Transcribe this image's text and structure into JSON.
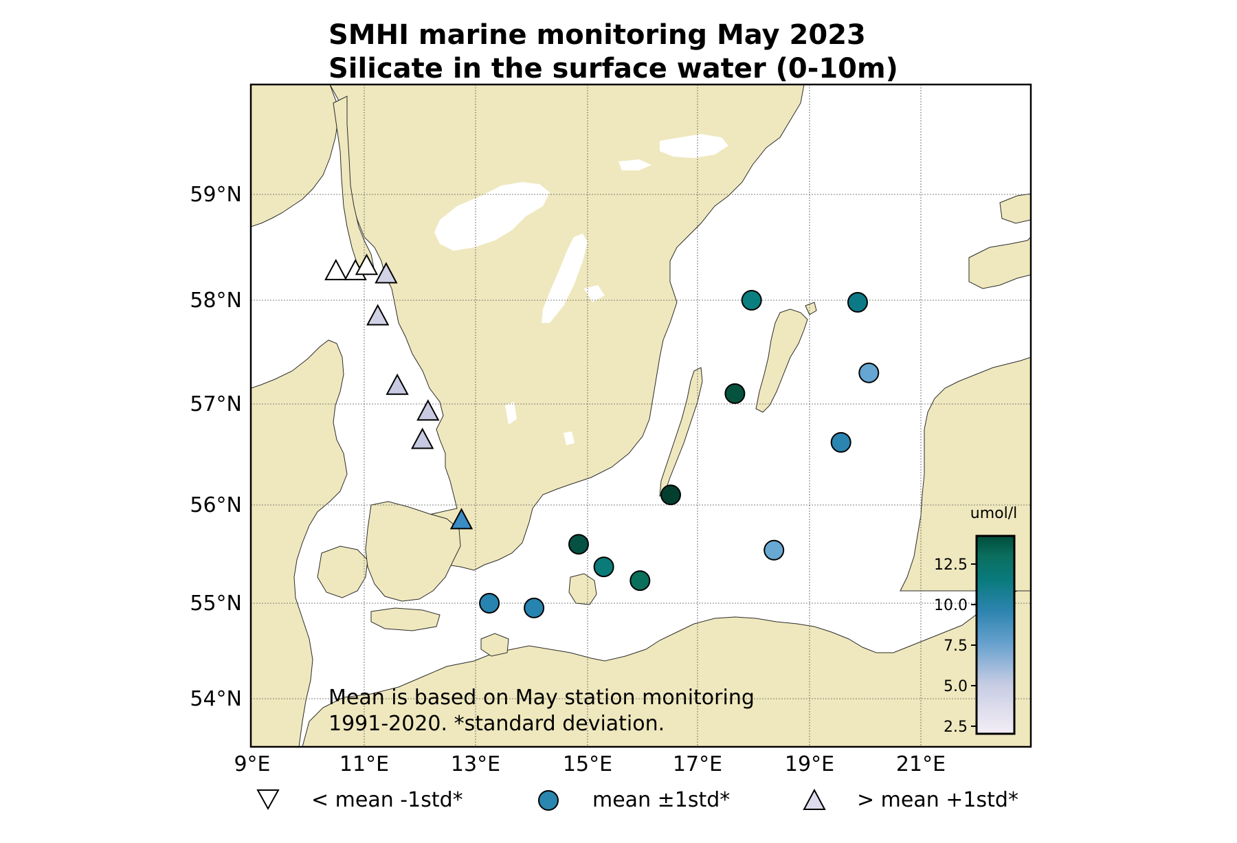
{
  "title": {
    "line1": "SMHI marine monitoring May 2023",
    "line2": "Silicate in the surface water (0-10m)"
  },
  "note": {
    "line1": "Mean is based on May station monitoring",
    "line2": "1991-2020. *standard deviation."
  },
  "axes": {
    "lon_ticks": [
      "9°E",
      "11°E",
      "13°E",
      "15°E",
      "17°E",
      "19°E",
      "21°E"
    ],
    "lat_ticks": [
      "59°N",
      "58°N",
      "57°N",
      "56°N",
      "55°N",
      "54°N"
    ]
  },
  "colorbar": {
    "unit": "umol/l",
    "ticks": [
      "2.5",
      "5.0",
      "7.5",
      "10.0",
      "12.5"
    ],
    "colormap": [
      "#f4eef6",
      "#c6cce3",
      "#6aa2cf",
      "#2d84b0",
      "#097a7c",
      "#0b6e5e",
      "#004c3a"
    ]
  },
  "legend": {
    "below": {
      "label": "< mean -1std*",
      "marker": "triangle-down",
      "color": "#ffffff"
    },
    "within": {
      "label": "mean ±1std*",
      "marker": "circle",
      "color": "#2a86ae"
    },
    "above": {
      "label": "> mean +1std*",
      "marker": "triangle-up",
      "color": "#dcdcec"
    }
  },
  "stations": [
    {
      "lon": 10.5,
      "lat": 58.28,
      "marker": "triangle-up",
      "color": "#ffffff"
    },
    {
      "lon": 10.85,
      "lat": 58.28,
      "marker": "triangle-up",
      "color": "#ffffff"
    },
    {
      "lon": 11.05,
      "lat": 58.33,
      "marker": "triangle-up",
      "color": "#ffffff"
    },
    {
      "lon": 11.4,
      "lat": 58.25,
      "marker": "triangle-up",
      "color": "#d2d2e6"
    },
    {
      "lon": 11.25,
      "lat": 57.85,
      "marker": "triangle-up",
      "color": "#d2d2e6"
    },
    {
      "lon": 11.6,
      "lat": 57.18,
      "marker": "triangle-up",
      "color": "#c8cae2"
    },
    {
      "lon": 12.15,
      "lat": 56.93,
      "marker": "triangle-up",
      "color": "#c8cae2"
    },
    {
      "lon": 12.05,
      "lat": 56.65,
      "marker": "triangle-up",
      "color": "#c8cae2"
    },
    {
      "lon": 12.75,
      "lat": 55.85,
      "marker": "triangle-up",
      "color": "#3a8cc4"
    },
    {
      "lon": 13.25,
      "lat": 55.0,
      "marker": "circle",
      "color": "#2783b0"
    },
    {
      "lon": 14.05,
      "lat": 54.95,
      "marker": "circle",
      "color": "#2783b0"
    },
    {
      "lon": 14.85,
      "lat": 55.6,
      "marker": "circle",
      "color": "#055242"
    },
    {
      "lon": 15.3,
      "lat": 55.37,
      "marker": "circle",
      "color": "#0a7b78"
    },
    {
      "lon": 15.95,
      "lat": 55.23,
      "marker": "circle",
      "color": "#0a705c"
    },
    {
      "lon": 16.5,
      "lat": 56.1,
      "marker": "circle",
      "color": "#023f2e"
    },
    {
      "lon": 17.65,
      "lat": 57.1,
      "marker": "circle",
      "color": "#05523f"
    },
    {
      "lon": 17.95,
      "lat": 58.0,
      "marker": "circle",
      "color": "#0a7f7f"
    },
    {
      "lon": 19.85,
      "lat": 57.98,
      "marker": "circle",
      "color": "#0c7a86"
    },
    {
      "lon": 20.05,
      "lat": 57.3,
      "marker": "circle",
      "color": "#65a6d2"
    },
    {
      "lon": 19.55,
      "lat": 56.62,
      "marker": "circle",
      "color": "#2b85b1"
    },
    {
      "lon": 18.35,
      "lat": 55.54,
      "marker": "circle",
      "color": "#68a8d3"
    }
  ]
}
